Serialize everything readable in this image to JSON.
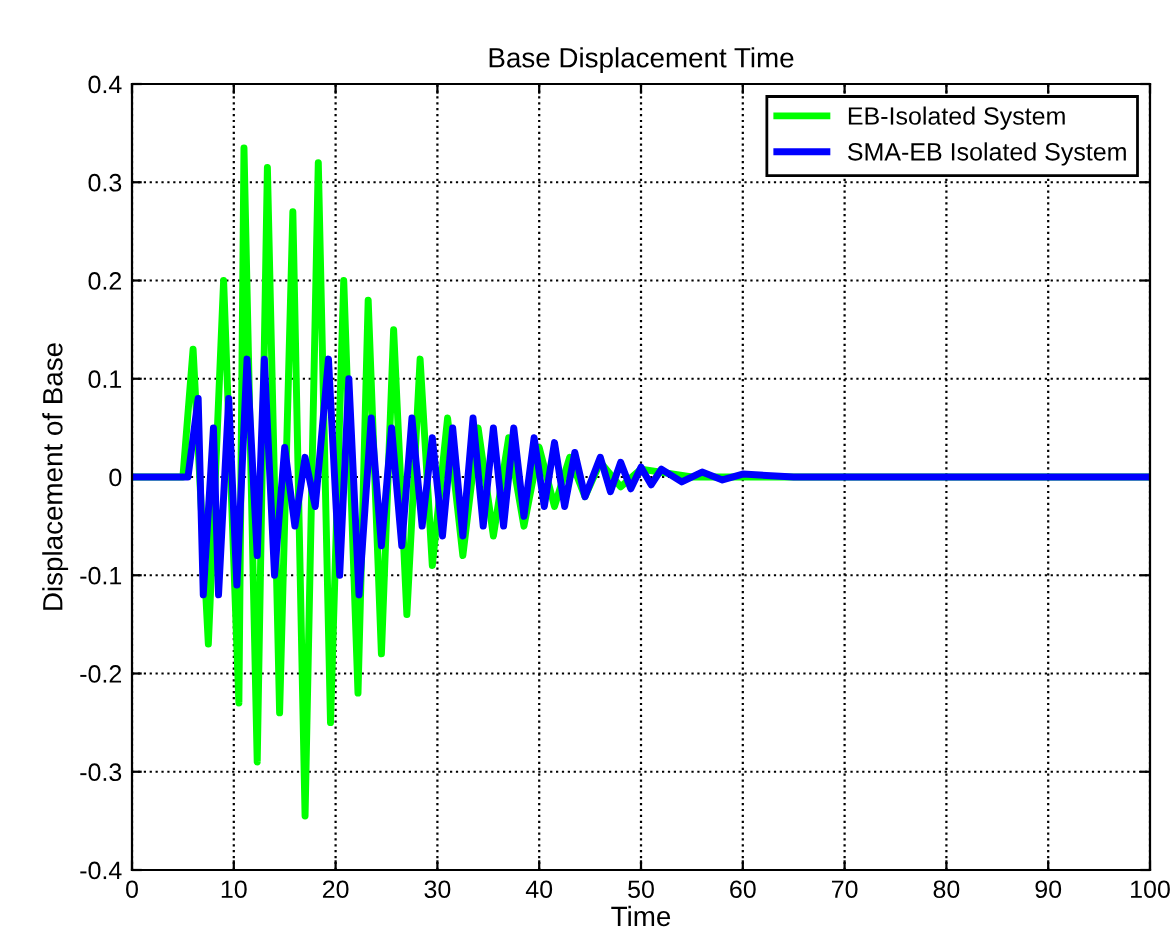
{
  "chart_data": {
    "type": "line",
    "title": "Base Displacement Time",
    "xlabel": "Time",
    "ylabel": "Displacement of Base",
    "xlim": [
      0,
      100
    ],
    "ylim": [
      -0.4,
      0.4
    ],
    "xticks": [
      0,
      10,
      20,
      30,
      40,
      50,
      60,
      70,
      80,
      90,
      100
    ],
    "yticks": [
      -0.4,
      -0.3,
      -0.2,
      -0.1,
      0,
      0.1,
      0.2,
      0.3,
      0.4
    ],
    "grid": true,
    "legend": "top right",
    "line_style": "solid",
    "marker": "none",
    "series": [
      {
        "name": "EB-Isolated System",
        "color": "#00ff00",
        "x": [
          0,
          5,
          6,
          7.5,
          9,
          10.5,
          11,
          12.3,
          13.3,
          14.5,
          15.8,
          17,
          18.3,
          19.5,
          20.8,
          22.2,
          23.2,
          24.5,
          25.7,
          27,
          28.3,
          29.5,
          31,
          32.5,
          34,
          35.5,
          37,
          38.5,
          40,
          41.5,
          43,
          44.5,
          46,
          48,
          50,
          55,
          100
        ],
        "values": [
          0,
          0,
          0.13,
          -0.17,
          0.2,
          -0.23,
          0.335,
          -0.29,
          0.315,
          -0.24,
          0.27,
          -0.345,
          0.32,
          -0.25,
          0.2,
          -0.22,
          0.18,
          -0.18,
          0.15,
          -0.14,
          0.12,
          -0.09,
          0.06,
          -0.08,
          0.05,
          -0.06,
          0.04,
          -0.05,
          0.03,
          -0.03,
          0.02,
          -0.02,
          0.015,
          -0.01,
          0.008,
          0,
          0
        ]
      },
      {
        "name": "SMA-EB Isolated System",
        "color": "#0000ff",
        "x": [
          0,
          5.5,
          6.5,
          7,
          8,
          8.5,
          9.5,
          10.3,
          11.3,
          12.3,
          13,
          14,
          15,
          16,
          17,
          18,
          19.3,
          20.4,
          21.3,
          22.3,
          23.5,
          24.5,
          25.5,
          26.5,
          27.5,
          28.5,
          29.5,
          30.5,
          31.5,
          32.5,
          33.5,
          34.5,
          35.5,
          36.5,
          37.5,
          38.5,
          39.5,
          40.5,
          41.5,
          42.5,
          43.5,
          44.5,
          46,
          47,
          48,
          49,
          50,
          51,
          52,
          54,
          56,
          58,
          60,
          65,
          100
        ],
        "values": [
          0,
          0,
          0.08,
          -0.12,
          0.05,
          -0.12,
          0.08,
          -0.11,
          0.12,
          -0.08,
          0.12,
          -0.1,
          0.03,
          -0.05,
          0.02,
          -0.03,
          0.12,
          -0.1,
          0.1,
          -0.12,
          0.06,
          -0.07,
          0.05,
          -0.07,
          0.06,
          -0.05,
          0.04,
          -0.06,
          0.05,
          -0.06,
          0.06,
          -0.05,
          0.05,
          -0.05,
          0.05,
          -0.04,
          0.04,
          -0.03,
          0.035,
          -0.03,
          0.025,
          -0.02,
          0.02,
          -0.015,
          0.015,
          -0.012,
          0.01,
          -0.008,
          0.008,
          -0.005,
          0.005,
          -0.003,
          0.003,
          0,
          0
        ]
      }
    ]
  }
}
